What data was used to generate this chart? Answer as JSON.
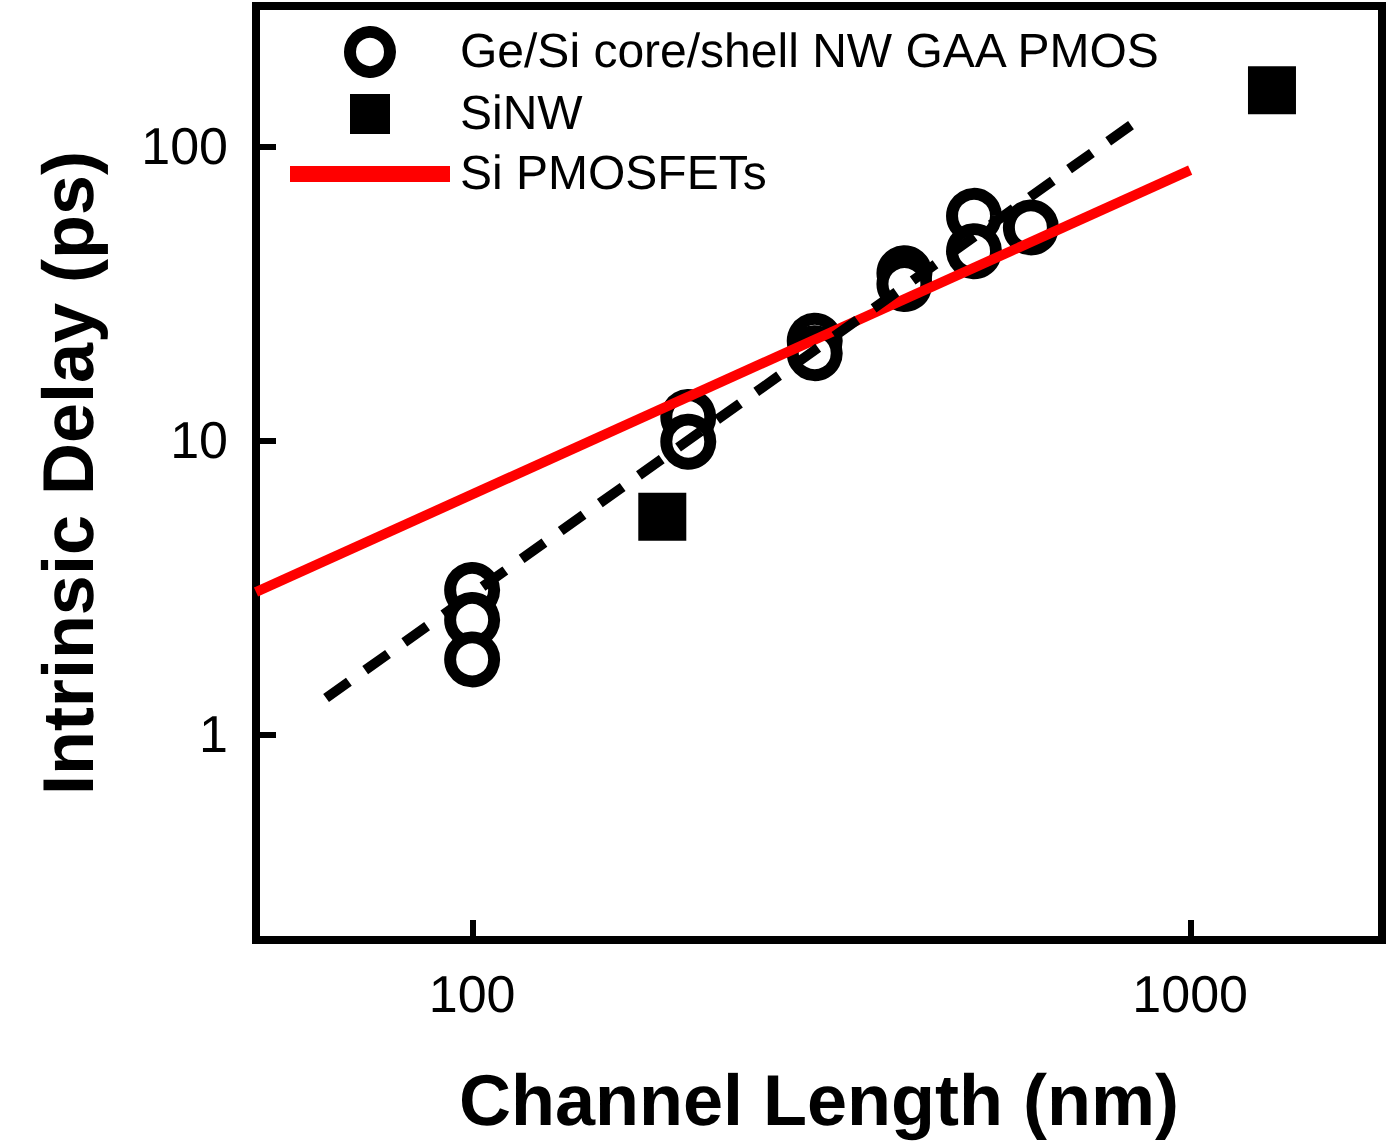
{
  "chart_data": {
    "type": "scatter",
    "xlabel": "Channel Length (nm)",
    "ylabel": "Intrinsic Delay (ps)",
    "log": "xy",
    "xlim": [
      50,
      1850
    ],
    "ylim": [
      0.2,
      300
    ],
    "xticks": [
      100,
      1000
    ],
    "yticks": [
      1,
      10,
      100
    ],
    "grid": false,
    "legend": "top left",
    "series": [
      {
        "name": "Ge/Si core/shell NW GAA PMOS",
        "color": "#000000",
        "marker": "circle",
        "x": [
          100,
          100,
          100,
          200,
          200,
          300,
          300,
          400,
          400,
          500,
          500,
          600
        ],
        "values": [
          3.1,
          2.45,
          1.8,
          12,
          9.9,
          21.8,
          19.8,
          37,
          34,
          58,
          44,
          53
        ]
      },
      {
        "name": "SiNW",
        "color": "#000000",
        "marker": "square",
        "x": [
          184,
          1300
        ],
        "values": [
          5.5,
          155
        ]
      },
      {
        "name": "Si PMOSFETs",
        "type": "line",
        "color": "#ff0000",
        "line_style": "solid",
        "marker": "none",
        "x": [
          50,
          1000
        ],
        "values": [
          3.05,
          83
        ]
      },
      {
        "type": "line",
        "color": "#000000",
        "line_style": "dashed",
        "marker": "none",
        "x": [
          62.6,
          847
        ],
        "values": [
          1.33,
          123
        ]
      }
    ]
  }
}
